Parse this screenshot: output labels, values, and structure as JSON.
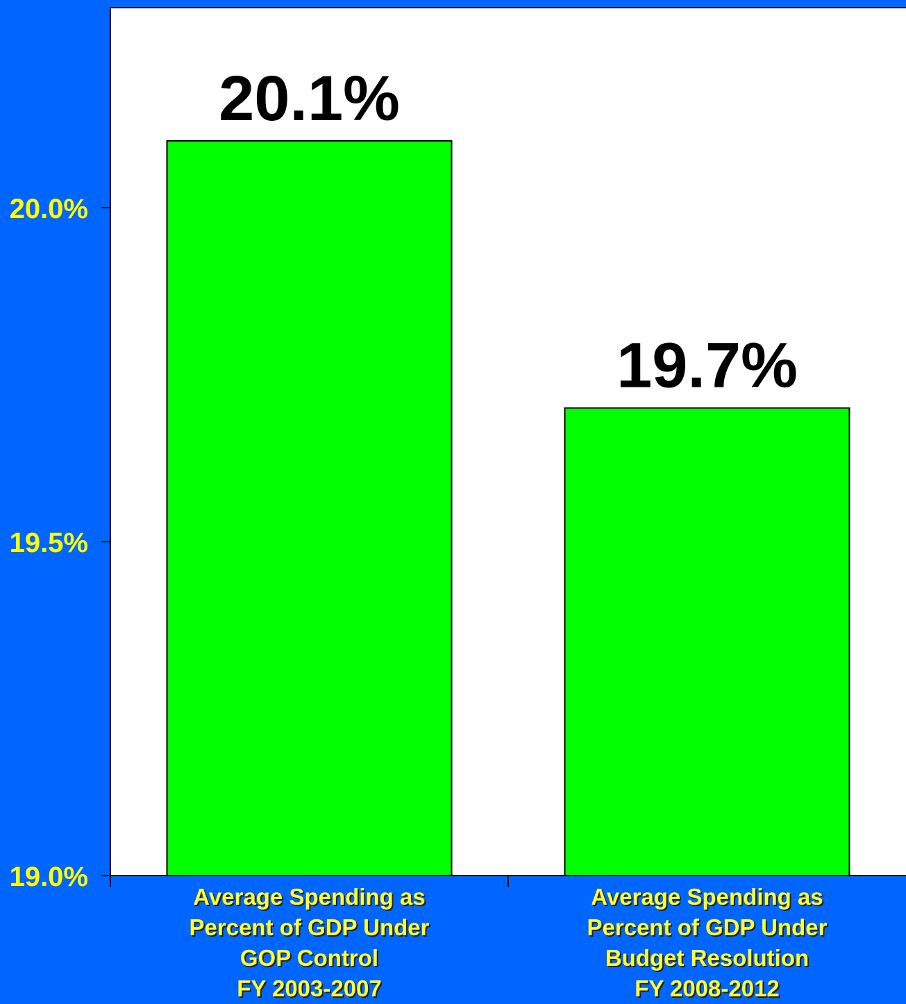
{
  "chart_data": {
    "type": "bar",
    "categories": [
      [
        "Average Spending as",
        "Percent of GDP Under",
        "GOP Control",
        "FY 2003-2007"
      ],
      [
        "Average Spending as",
        "Percent of GDP Under",
        "Budget Resolution",
        "FY 2008-2012"
      ]
    ],
    "values": [
      20.1,
      19.7
    ],
    "data_labels": [
      "20.1%",
      "19.7%"
    ],
    "title": "",
    "xlabel": "",
    "ylabel": "",
    "ylim": [
      19.0,
      20.3
    ],
    "yticks": [
      19.0,
      19.5,
      20.0
    ],
    "ytick_labels": [
      "19.0%",
      "19.5%",
      "20.0%"
    ],
    "grid": false,
    "colors": {
      "background": "#0066ff",
      "plot_area": "#ffffff",
      "bar": "#00ff00",
      "tick_label": "#ffff00",
      "category_label": "#ffff33",
      "value_label": "#000000"
    }
  }
}
